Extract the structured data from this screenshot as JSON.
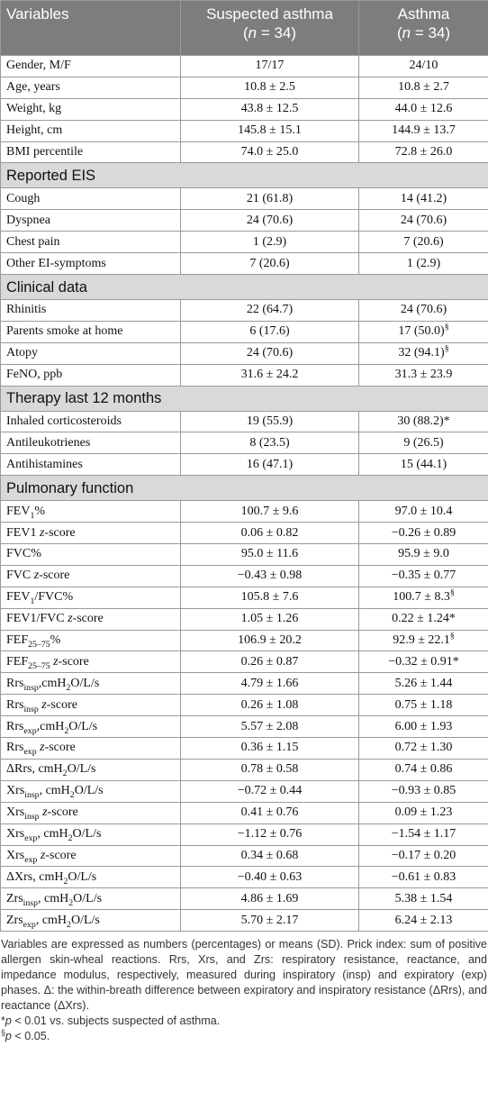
{
  "table": {
    "header": [
      "Variables",
      [
        "Suspected asthma"
      ],
      [
        "Asthma"
      ]
    ],
    "header_n": [
      [
        "(",
        {
          "i": "n"
        },
        " = 34)"
      ],
      [
        "(",
        {
          "i": "n"
        },
        " = 34)"
      ]
    ],
    "sections": [
      {
        "rows": [
          {
            "label": "Gender, M/F",
            "values": [
              "17/17",
              "24/10"
            ]
          },
          {
            "label": "Age, years",
            "values": [
              "10.8 ± 2.5",
              "10.8 ± 2.7"
            ]
          },
          {
            "label": "Weight, kg",
            "values": [
              "43.8 ± 12.5",
              "44.0 ± 12.6"
            ]
          },
          {
            "label": "Height, cm",
            "values": [
              "145.8 ± 15.1",
              "144.9 ± 13.7"
            ]
          },
          {
            "label": "BMI percentile",
            "values": [
              "74.0 ± 25.0",
              "72.8 ± 26.0"
            ]
          }
        ]
      },
      {
        "title": "Reported EIS",
        "rows": [
          {
            "label": "Cough",
            "values": [
              "21 (61.8)",
              "14 (41.2)"
            ]
          },
          {
            "label": "Dyspnea",
            "values": [
              "24 (70.6)",
              "24 (70.6)"
            ]
          },
          {
            "label": "Chest pain",
            "values": [
              "1 (2.9)",
              "7 (20.6)"
            ]
          },
          {
            "label": "Other EI-symptoms",
            "values": [
              "7 (20.6)",
              "1 (2.9)"
            ]
          }
        ]
      },
      {
        "title": "Clinical data",
        "rows": [
          {
            "label": "Rhinitis",
            "values": [
              "22 (64.7)",
              "24 (70.6)"
            ]
          },
          {
            "label": "Parents smoke at home",
            "values": [
              "6 (17.6)",
              [
                "17 (50.0)",
                {
                  "sup": "§"
                }
              ]
            ]
          },
          {
            "label": "Atopy",
            "values": [
              "24 (70.6)",
              [
                "32 (94.1)",
                {
                  "sup": "§"
                }
              ]
            ]
          },
          {
            "label": "FeNO, ppb",
            "values": [
              "31.6 ± 24.2",
              "31.3 ± 23.9"
            ]
          }
        ]
      },
      {
        "title": "Therapy last 12 months",
        "rows": [
          {
            "label": "Inhaled corticosteroids",
            "values": [
              "19 (55.9)",
              "30 (88.2)*"
            ]
          },
          {
            "label": "Antileukotrienes",
            "values": [
              "8 (23.5)",
              "9 (26.5)"
            ]
          },
          {
            "label": "Antihistamines",
            "values": [
              "16 (47.1)",
              "15 (44.1)"
            ]
          }
        ]
      },
      {
        "title": "Pulmonary function",
        "rows": [
          {
            "label": [
              "FEV",
              {
                "sub": "1"
              },
              "%"
            ],
            "values": [
              "100.7 ± 9.6",
              "97.0 ± 10.4"
            ]
          },
          {
            "label": [
              "FEV1 ",
              {
                "i": "z"
              },
              "-score"
            ],
            "values": [
              "0.06 ± 0.82",
              "−0.26 ± 0.89"
            ]
          },
          {
            "label": "FVC%",
            "values": [
              "95.0 ± 11.6",
              "95.9 ± 9.0"
            ]
          },
          {
            "label": [
              "FVC ",
              {
                "i": "z"
              },
              "-score"
            ],
            "values": [
              "−0.43 ± 0.98",
              "−0.35 ± 0.77"
            ]
          },
          {
            "label": [
              "FEV",
              {
                "sub": "1"
              },
              "/FVC%"
            ],
            "values": [
              "105.8 ± 7.6",
              [
                "100.7 ± 8.3",
                {
                  "sup": "§"
                }
              ]
            ]
          },
          {
            "label": [
              "FEV1/FVC ",
              {
                "i": "z"
              },
              "-score"
            ],
            "values": [
              "1.05 ± 1.26",
              "0.22 ± 1.24*"
            ]
          },
          {
            "label": [
              "FEF",
              {
                "sub": "25–75"
              },
              "%"
            ],
            "values": [
              "106.9 ± 20.2",
              [
                "92.9 ± 22.1",
                {
                  "sup": "§"
                }
              ]
            ]
          },
          {
            "label": [
              "FEF",
              {
                "sub": "25–75"
              },
              " ",
              {
                "i": "z"
              },
              "-score"
            ],
            "values": [
              "0.26 ± 0.87",
              "−0.32 ± 0.91*"
            ]
          },
          {
            "label": [
              "Rrs",
              {
                "sub": "insp"
              },
              ",cmH",
              {
                "sub": "2"
              },
              "O/L/s"
            ],
            "values": [
              "4.79 ± 1.66",
              "5.26 ± 1.44"
            ]
          },
          {
            "label": [
              "Rrs",
              {
                "sub": "insp"
              },
              " ",
              {
                "i": "z"
              },
              "-score"
            ],
            "values": [
              "0.26 ± 1.08",
              "0.75 ± 1.18"
            ]
          },
          {
            "label": [
              "Rrs",
              {
                "sub": "exp"
              },
              ",cmH",
              {
                "sub": "2"
              },
              "O/L/s"
            ],
            "values": [
              "5.57 ± 2.08",
              "6.00 ± 1.93"
            ]
          },
          {
            "label": [
              "Rrs",
              {
                "sub": "exp"
              },
              " ",
              {
                "i": "z"
              },
              "-score"
            ],
            "values": [
              "0.36 ± 1.15",
              "0.72 ± 1.30"
            ]
          },
          {
            "label": [
              "ΔRrs, cmH",
              {
                "sub": "2"
              },
              "O/L/s"
            ],
            "values": [
              "0.78 ± 0.58",
              "0.74 ± 0.86"
            ]
          },
          {
            "label": [
              "Xrs",
              {
                "sub": "insp"
              },
              ", cmH",
              {
                "sub": "2"
              },
              "O/L/s"
            ],
            "values": [
              "−0.72 ± 0.44",
              "−0.93 ± 0.85"
            ]
          },
          {
            "label": [
              "Xrs",
              {
                "sub": "insp"
              },
              " ",
              {
                "i": "z"
              },
              "-score"
            ],
            "values": [
              "0.41 ± 0.76",
              "0.09 ± 1.23"
            ]
          },
          {
            "label": [
              "Xrs",
              {
                "sub": "exp"
              },
              ", cmH",
              {
                "sub": "2"
              },
              "O/L/s"
            ],
            "values": [
              "−1.12 ± 0.76",
              "−1.54 ± 1.17"
            ]
          },
          {
            "label": [
              "Xrs",
              {
                "sub": "exp"
              },
              " ",
              {
                "i": "z"
              },
              "-score"
            ],
            "values": [
              "0.34 ± 0.68",
              "−0.17 ± 0.20"
            ]
          },
          {
            "label": [
              "ΔXrs, cmH",
              {
                "sub": "2"
              },
              "O/L/s"
            ],
            "values": [
              "−0.40 ± 0.63",
              "−0.61 ± 0.83"
            ]
          },
          {
            "label": [
              "Zrs",
              {
                "sub": "insp"
              },
              ", cmH",
              {
                "sub": "2"
              },
              "O/L/s"
            ],
            "values": [
              "4.86 ± 1.69",
              "5.38 ± 1.54"
            ]
          },
          {
            "label": [
              "Zrs",
              {
                "sub": "exp"
              },
              ", cmH",
              {
                "sub": "2"
              },
              "O/L/s"
            ],
            "values": [
              "5.70 ± 2.17",
              "6.24 ± 2.13"
            ]
          }
        ]
      }
    ]
  },
  "notes": [
    "Variables are expressed as numbers (percentages) or means (SD). Prick index: sum of positive allergen skin-wheal reactions. Rrs, Xrs, and Zrs: respiratory resistance, reactance, and impedance modulus, respectively, measured during inspiratory (insp) and expiratory (exp) phases. Δ: the within-breath difference between expiratory and inspiratory resistance (ΔRrs), and reactance (ΔXrs).",
    [
      "*",
      {
        "i": "p"
      },
      " < 0.01 vs. subjects suspected of asthma."
    ],
    [
      {
        "sup": "§"
      },
      {
        "i": "p"
      },
      " < 0.05."
    ]
  ]
}
